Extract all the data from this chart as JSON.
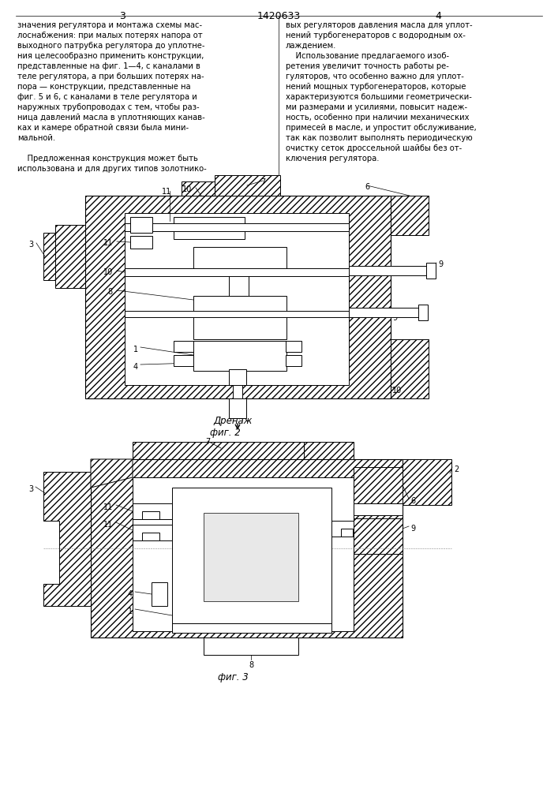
{
  "title": "1420633",
  "page_left": "3",
  "page_right": "4",
  "text_left": [
    "значения регулятора и монтажа схемы мас-",
    "лоснабжения: при малых потерях напора от",
    "выходного патрубка регулятора до уплотне-",
    "ния целесообразно применить конструкции,",
    "представленные на фиг. 1—4, с каналами в",
    "теле регулятора, а при больших потерях на-",
    "пора — конструкции, представленные на",
    "фиг. 5 и 6, с каналами в теле регулятора и",
    "наружных трубопроводах с тем, чтобы раз-",
    "ница давлений масла в уплотняющих канав-",
    "ках и камере обратной связи была мини-",
    "мальной.",
    "",
    "    Предложенная конструкция может быть",
    "использована и для других типов золотнико-"
  ],
  "text_right": [
    "вых регуляторов давления масла для уплот-",
    "нений турбогенераторов с водородным ох-",
    "лаждением.",
    "    Использование предлагаемого изоб-",
    "ретения увеличит точность работы ре-",
    "гуляторов, что особенно важно для уплот-",
    "нений мощных турбогенераторов, которые",
    "характеризуются большими геометрически-",
    "ми размерами и усилиями, повысит надеж-",
    "ность, особенно при наличии механических",
    "примесей в масле, и упростит обслуживание,",
    "так как позволит выполнять периодическую",
    "очистку сеток дроссельной шайбы без от-",
    "ключения регулятора."
  ],
  "fig2_label": "фиг. 2",
  "fig3_label": "фиг. 3",
  "drenazh_label": "Дренаж",
  "bg_color": "#ffffff",
  "line_color": "#000000",
  "font_size_body": 7.2,
  "font_size_num": 7.0
}
